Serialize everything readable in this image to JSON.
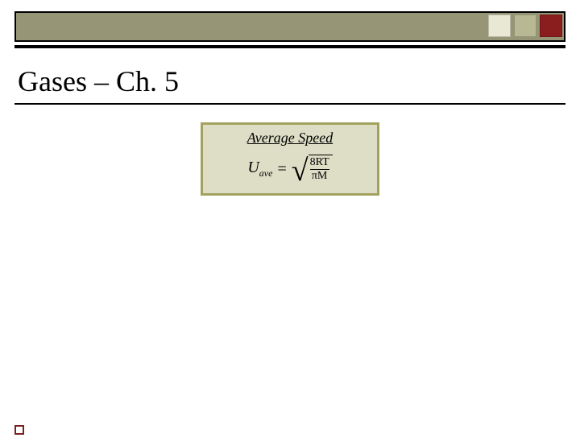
{
  "colors": {
    "bar_bg": "#969676",
    "squares": [
      "#e8e8d4",
      "#b8b894",
      "#8a1e1e"
    ],
    "box_border": "#a2a25e",
    "box_bg": "#dedec6",
    "corner_border": "#7a2020"
  },
  "title": "Gases – Ch. 5",
  "formula_box": {
    "label": "Average Speed",
    "lhs_var": "U",
    "lhs_sub": "ave",
    "equals": "=",
    "frac_top": "8RT",
    "frac_bot": "πM"
  }
}
